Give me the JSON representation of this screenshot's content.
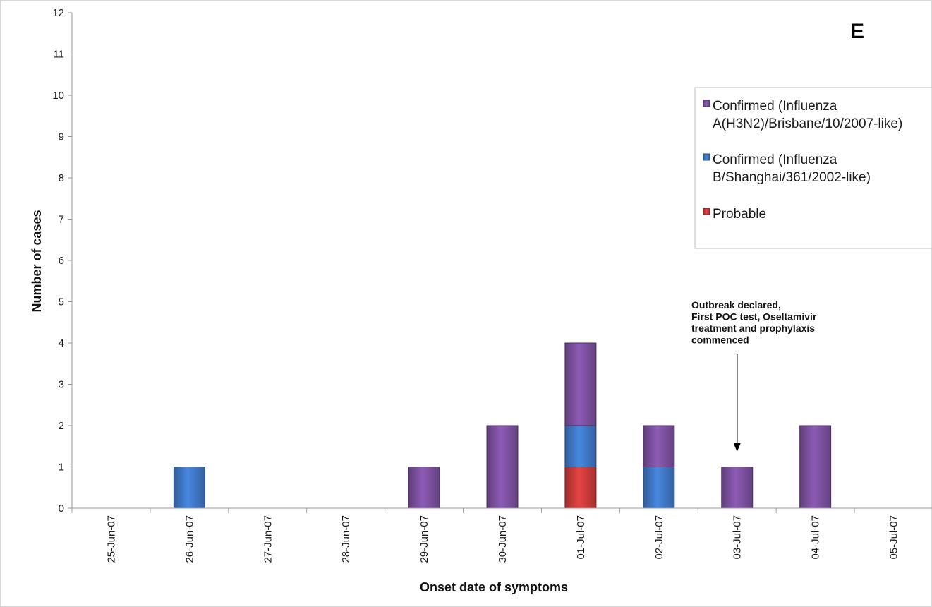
{
  "chart_data": {
    "type": "bar",
    "stacked": true,
    "panel_label": "E",
    "xlabel": "Onset date of symptoms",
    "ylabel": "Number of cases",
    "ylim": [
      0,
      12
    ],
    "yticks": [
      0,
      1,
      2,
      3,
      4,
      5,
      6,
      7,
      8,
      9,
      10,
      11,
      12
    ],
    "categories": [
      "25-Jun-07",
      "26-Jun-07",
      "27-Jun-07",
      "28-Jun-07",
      "29-Jun-07",
      "30-Jun-07",
      "01-Jul-07",
      "02-Jul-07",
      "03-Jul-07",
      "04-Jul-07",
      "05-Jul-07"
    ],
    "series": [
      {
        "name": "Probable",
        "color": "#c93a3a",
        "values": [
          0,
          0,
          0,
          0,
          0,
          0,
          1,
          0,
          0,
          0,
          0
        ]
      },
      {
        "name": "Confirmed (Influenza B/Shanghai/361/2002-like)",
        "color": "#3f76c4",
        "values": [
          0,
          1,
          0,
          0,
          0,
          0,
          1,
          1,
          0,
          0,
          0
        ]
      },
      {
        "name": "Confirmed (Influenza A(H3N2)/Brisbane/10/2007-like)",
        "color": "#7b4f9d",
        "values": [
          0,
          0,
          0,
          0,
          1,
          2,
          2,
          1,
          1,
          2,
          0
        ]
      }
    ],
    "legend": {
      "placement": "right",
      "entries": [
        {
          "series": 2,
          "lines": [
            "Confirmed (Influenza",
            "A(H3N2)/Brisbane/10/2007-like)"
          ]
        },
        {
          "series": 1,
          "lines": [
            "Confirmed (Influenza",
            "B/Shanghai/361/2002-like)"
          ]
        },
        {
          "series": 0,
          "lines": [
            "Probable"
          ]
        }
      ]
    },
    "annotation": {
      "category": "03-Jul-07",
      "lines": [
        "Outbreak declared,",
        "First POC test, Oseltamivir",
        "treatment and prophylaxis",
        "commenced"
      ]
    }
  }
}
